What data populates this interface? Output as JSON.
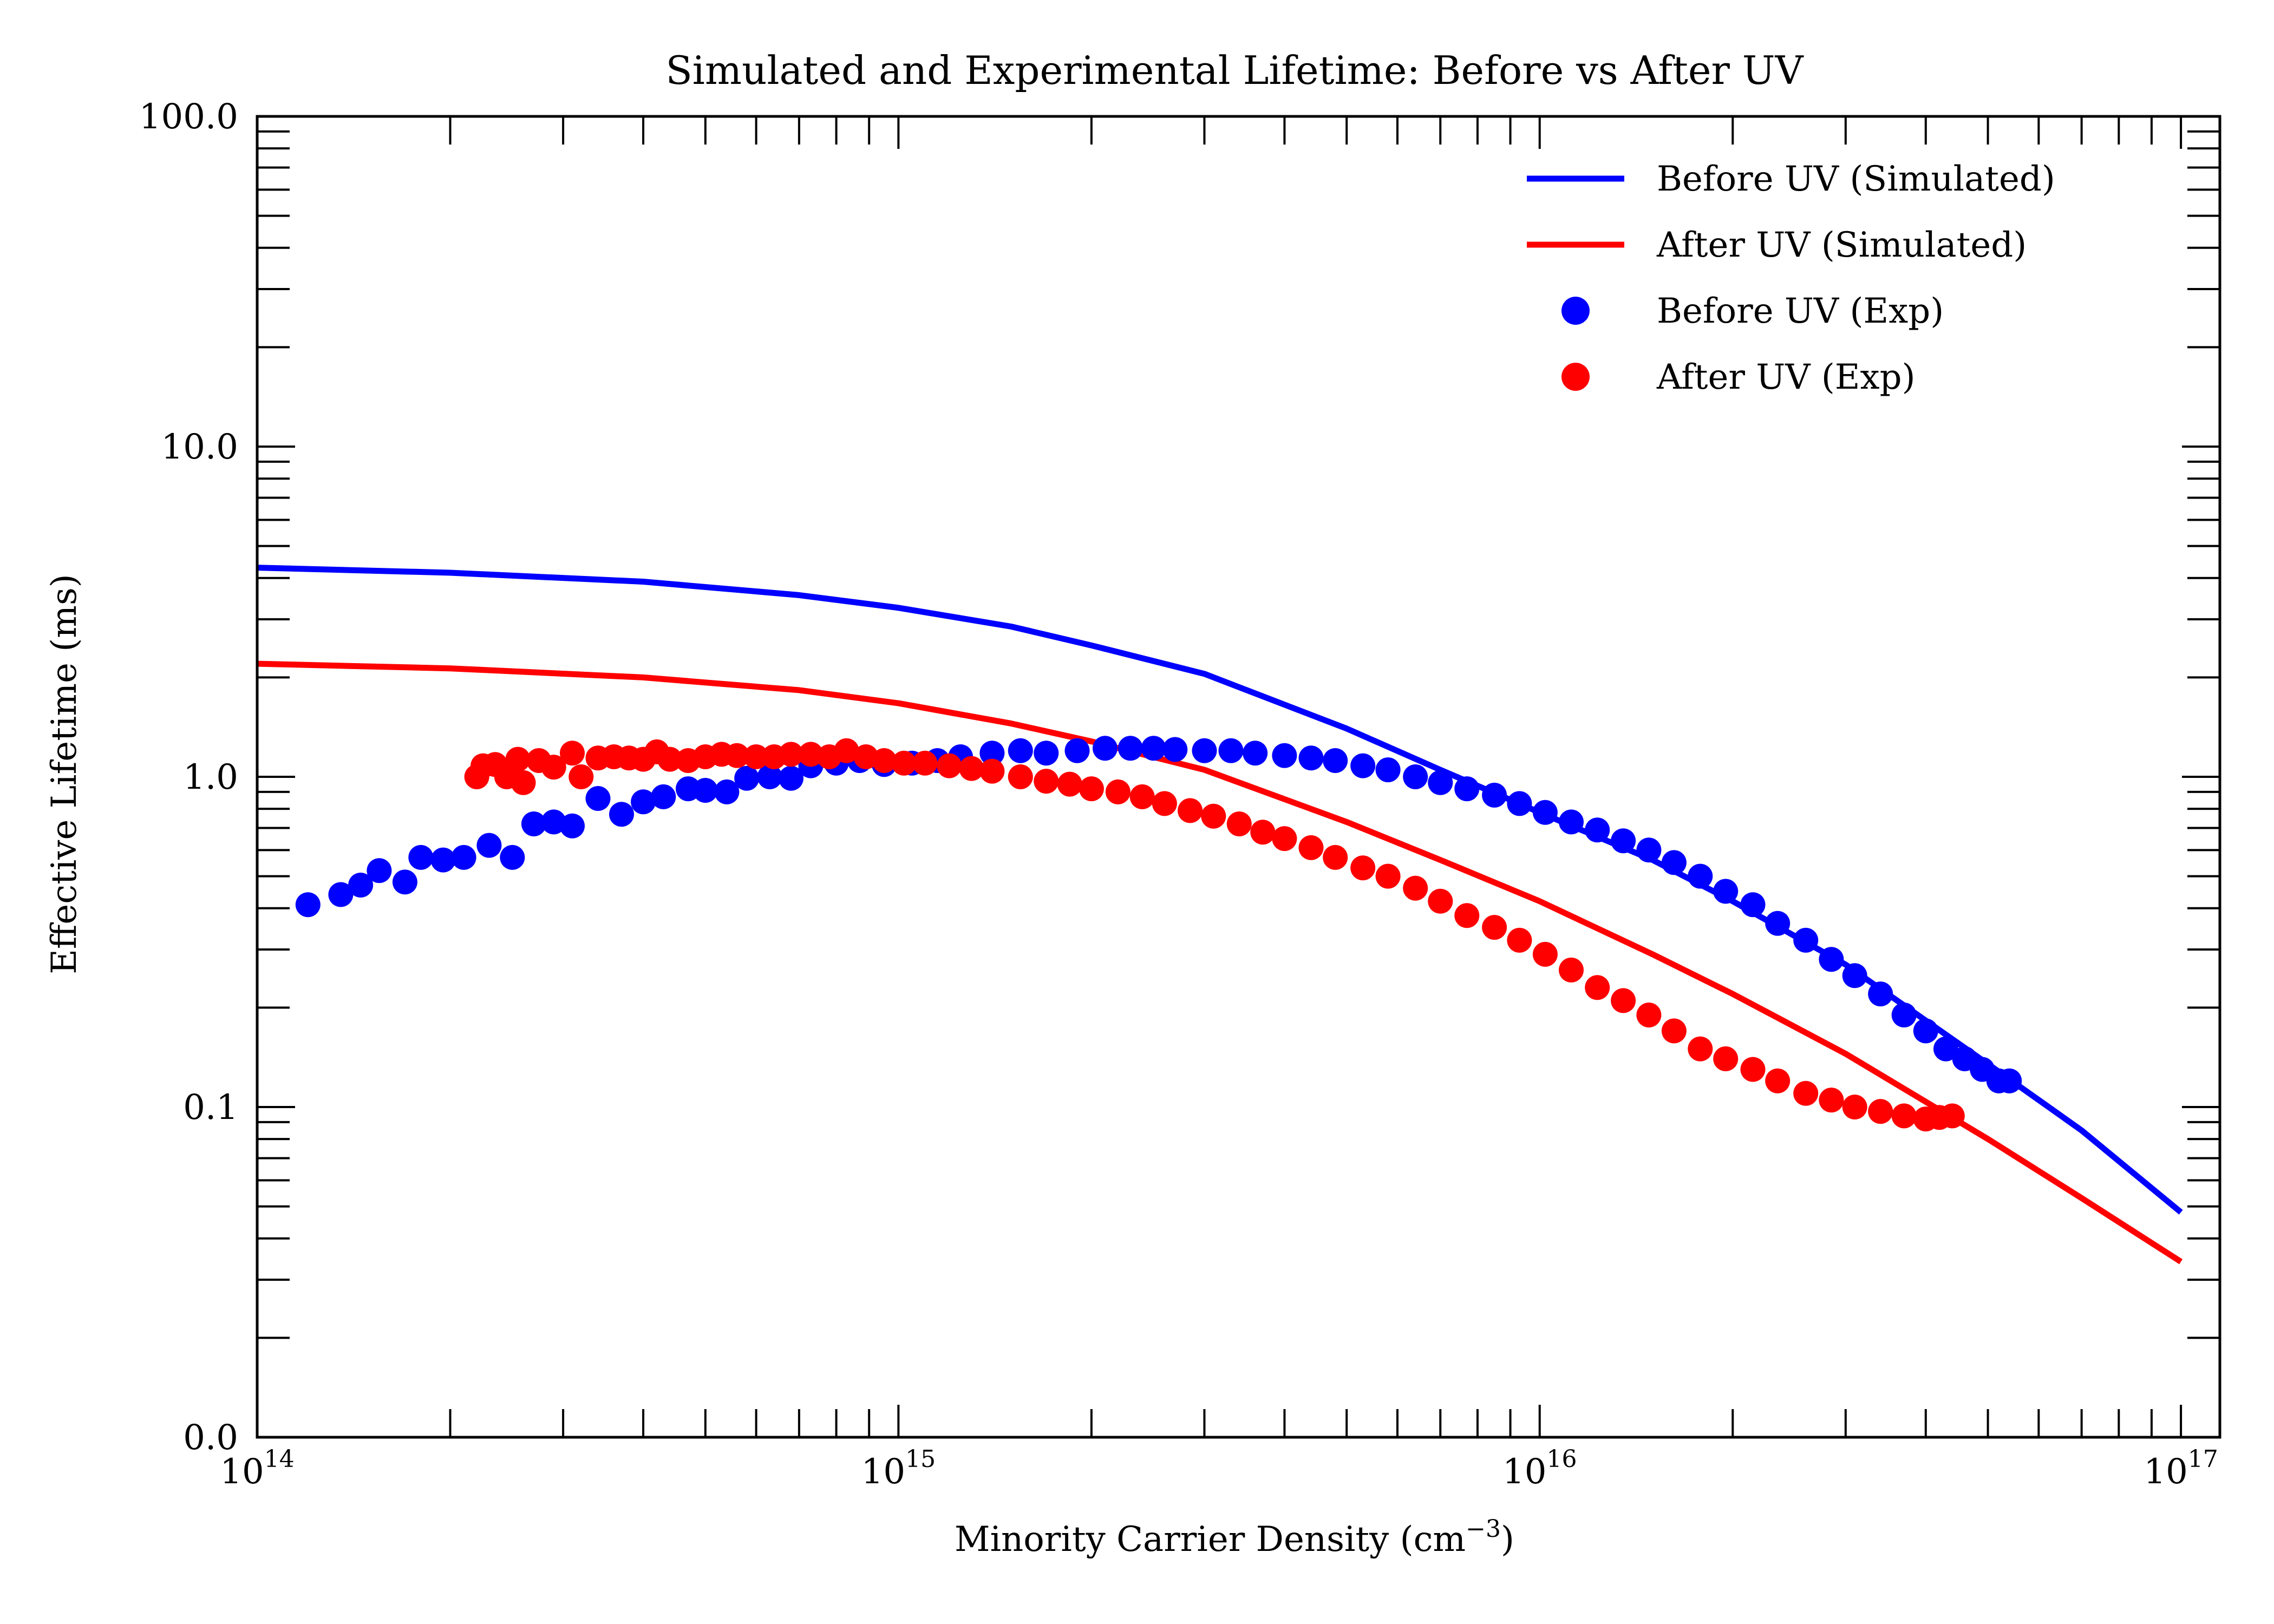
{
  "chart_data": {
    "type": "line",
    "title": "Simulated and Experimental Lifetime: Before vs After UV",
    "xlabel": "Minority Carrier Density (cm",
    "xlabel_sup": "−3",
    "xlabel_suffix": ")",
    "ylabel": "Effective Lifetime (ms)",
    "x_scale": "log",
    "y_scale": "log",
    "xlim": [
      100000000000000.0,
      1.15e+17
    ],
    "ylim": [
      0.01,
      100
    ],
    "x_tick_labels": [
      {
        "value": 100000000000000.0,
        "base": "10",
        "exp": "14"
      },
      {
        "value": 1000000000000000.0,
        "base": "10",
        "exp": "15"
      },
      {
        "value": 1e+16,
        "base": "10",
        "exp": "16"
      },
      {
        "value": 1e+17,
        "base": "10",
        "exp": "17"
      }
    ],
    "y_tick_labels": [
      {
        "value": 0.01,
        "label": "0.0"
      },
      {
        "value": 0.1,
        "label": "0.1"
      },
      {
        "value": 1,
        "label": "1.0"
      },
      {
        "value": 10,
        "label": "10.0"
      },
      {
        "value": 100,
        "label": "100.0"
      }
    ],
    "grid": false,
    "legend_position": "top-right",
    "series": [
      {
        "name": "Before UV (Simulated)",
        "kind": "line",
        "color": "#0000ff",
        "x": [
          100000000000000.0,
          200000000000000.0,
          400000000000000.0,
          700000000000000.0,
          1000000000000000.0,
          1500000000000000.0,
          2000000000000000.0,
          3000000000000000.0,
          5000000000000000.0,
          7000000000000000.0,
          1e+16,
          1.5e+16,
          2e+16,
          3e+16,
          5e+16,
          7e+16,
          1e+17
        ],
        "y": [
          4.3,
          4.15,
          3.9,
          3.55,
          3.25,
          2.85,
          2.5,
          2.05,
          1.4,
          1.05,
          0.78,
          0.56,
          0.42,
          0.27,
          0.135,
          0.085,
          0.048
        ]
      },
      {
        "name": "After UV (Simulated)",
        "kind": "line",
        "color": "#ff0000",
        "x": [
          100000000000000.0,
          200000000000000.0,
          400000000000000.0,
          700000000000000.0,
          1000000000000000.0,
          1500000000000000.0,
          2000000000000000.0,
          3000000000000000.0,
          5000000000000000.0,
          7000000000000000.0,
          1e+16,
          1.5e+16,
          2e+16,
          3e+16,
          5e+16,
          7e+16,
          1e+17
        ],
        "y": [
          2.2,
          2.13,
          2.0,
          1.83,
          1.67,
          1.45,
          1.28,
          1.05,
          0.73,
          0.56,
          0.42,
          0.29,
          0.22,
          0.145,
          0.08,
          0.053,
          0.034
        ]
      },
      {
        "name": "Before UV (Exp)",
        "kind": "scatter",
        "color": "#0000ff",
        "x": [
          120000000000000.0,
          135000000000000.0,
          145000000000000.0,
          155000000000000.0,
          170000000000000.0,
          180000000000000.0,
          195000000000000.0,
          210000000000000.0,
          230000000000000.0,
          250000000000000.0,
          270000000000000.0,
          290000000000000.0,
          310000000000000.0,
          340000000000000.0,
          370000000000000.0,
          400000000000000.0,
          430000000000000.0,
          470000000000000.0,
          500000000000000.0,
          540000000000000.0,
          580000000000000.0,
          630000000000000.0,
          680000000000000.0,
          730000000000000.0,
          800000000000000.0,
          870000000000000.0,
          950000000000000.0,
          1050000000000000.0,
          1150000000000000.0,
          1250000000000000.0,
          1400000000000000.0,
          1550000000000000.0,
          1700000000000000.0,
          1900000000000000.0,
          2100000000000000.0,
          2300000000000000.0,
          2500000000000000.0,
          2700000000000000.0,
          3000000000000000.0,
          3300000000000000.0,
          3600000000000000.0,
          4000000000000000.0,
          4400000000000000.0,
          4800000000000000.0,
          5300000000000000.0,
          5800000000000000.0,
          6400000000000000.0,
          7000000000000000.0,
          7700000000000000.0,
          8500000000000000.0,
          9300000000000000.0,
          1.02e+16,
          1.12e+16,
          1.23e+16,
          1.35e+16,
          1.48e+16,
          1.62e+16,
          1.78e+16,
          1.95e+16,
          2.15e+16,
          2.35e+16,
          2.6e+16,
          2.85e+16,
          3.1e+16,
          3.4e+16,
          3.7e+16,
          4e+16,
          4.3e+16,
          4.6e+16,
          4.9e+16,
          5.2e+16,
          5.4e+16
        ],
        "y": [
          0.41,
          0.44,
          0.47,
          0.52,
          0.48,
          0.57,
          0.56,
          0.57,
          0.62,
          0.57,
          0.72,
          0.73,
          0.71,
          0.86,
          0.77,
          0.84,
          0.87,
          0.92,
          0.91,
          0.9,
          0.99,
          1.0,
          0.99,
          1.08,
          1.1,
          1.12,
          1.09,
          1.1,
          1.12,
          1.15,
          1.18,
          1.2,
          1.18,
          1.2,
          1.22,
          1.22,
          1.22,
          1.21,
          1.2,
          1.2,
          1.18,
          1.16,
          1.14,
          1.12,
          1.08,
          1.05,
          1.0,
          0.96,
          0.92,
          0.88,
          0.83,
          0.78,
          0.73,
          0.69,
          0.64,
          0.6,
          0.55,
          0.5,
          0.45,
          0.41,
          0.36,
          0.32,
          0.28,
          0.25,
          0.22,
          0.19,
          0.17,
          0.15,
          0.14,
          0.13,
          0.12,
          0.12
        ]
      },
      {
        "name": "After UV (Exp)",
        "kind": "scatter",
        "color": "#ff0000",
        "x": [
          220000000000000.0,
          225000000000000.0,
          235000000000000.0,
          245000000000000.0,
          255000000000000.0,
          260000000000000.0,
          275000000000000.0,
          290000000000000.0,
          310000000000000.0,
          320000000000000.0,
          340000000000000.0,
          360000000000000.0,
          380000000000000.0,
          400000000000000.0,
          420000000000000.0,
          440000000000000.0,
          470000000000000.0,
          500000000000000.0,
          530000000000000.0,
          560000000000000.0,
          600000000000000.0,
          640000000000000.0,
          680000000000000.0,
          730000000000000.0,
          780000000000000.0,
          830000000000000.0,
          890000000000000.0,
          950000000000000.0,
          1020000000000000.0,
          1100000000000000.0,
          1200000000000000.0,
          1300000000000000.0,
          1400000000000000.0,
          1550000000000000.0,
          1700000000000000.0,
          1850000000000000.0,
          2000000000000000.0,
          2200000000000000.0,
          2400000000000000.0,
          2600000000000000.0,
          2850000000000000.0,
          3100000000000000.0,
          3400000000000000.0,
          3700000000000000.0,
          4000000000000000.0,
          4400000000000000.0,
          4800000000000000.0,
          5300000000000000.0,
          5800000000000000.0,
          6400000000000000.0,
          7000000000000000.0,
          7700000000000000.0,
          8500000000000000.0,
          9300000000000000.0,
          1.02e+16,
          1.12e+16,
          1.23e+16,
          1.35e+16,
          1.48e+16,
          1.62e+16,
          1.78e+16,
          1.95e+16,
          2.15e+16,
          2.35e+16,
          2.6e+16,
          2.85e+16,
          3.1e+16,
          3.4e+16,
          3.7e+16,
          4e+16,
          4.2e+16,
          4.4e+16
        ],
        "y": [
          1.0,
          1.08,
          1.09,
          1.0,
          1.13,
          0.96,
          1.12,
          1.07,
          1.18,
          1.0,
          1.14,
          1.15,
          1.14,
          1.13,
          1.19,
          1.13,
          1.12,
          1.15,
          1.17,
          1.16,
          1.15,
          1.15,
          1.17,
          1.17,
          1.15,
          1.2,
          1.15,
          1.12,
          1.1,
          1.1,
          1.08,
          1.06,
          1.04,
          1.0,
          0.97,
          0.95,
          0.92,
          0.9,
          0.87,
          0.83,
          0.79,
          0.76,
          0.72,
          0.68,
          0.65,
          0.61,
          0.57,
          0.53,
          0.5,
          0.46,
          0.42,
          0.38,
          0.35,
          0.32,
          0.29,
          0.26,
          0.23,
          0.21,
          0.19,
          0.17,
          0.15,
          0.14,
          0.13,
          0.12,
          0.11,
          0.105,
          0.1,
          0.097,
          0.094,
          0.092,
          0.093,
          0.094
        ]
      }
    ]
  }
}
